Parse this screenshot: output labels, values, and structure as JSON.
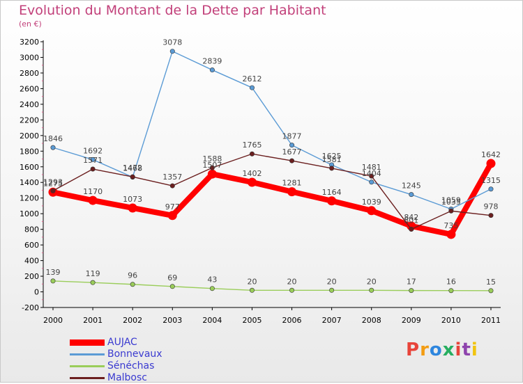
{
  "title": "Evolution du Montant de la Dette par Habitant",
  "subtitle": "(en €)",
  "logo_text": "Proxiti",
  "chart_data": {
    "type": "line",
    "x": [
      2000,
      2001,
      2002,
      2003,
      2004,
      2005,
      2006,
      2007,
      2008,
      2009,
      2010,
      2011
    ],
    "ylim": [
      -200,
      3200
    ],
    "yticks": [
      -200,
      0,
      200,
      400,
      600,
      800,
      1000,
      1200,
      1400,
      1600,
      1800,
      2000,
      2200,
      2400,
      2600,
      2800,
      3000,
      3200
    ],
    "grid": false,
    "legend_position": "bottom-left",
    "series": [
      {
        "name": "AUJAC",
        "color": "#ff0000",
        "values": [
          1275,
          1170,
          1073,
          977,
          1507,
          1402,
          1281,
          1164,
          1039,
          842,
          735,
          1642
        ]
      },
      {
        "name": "Bonnevaux",
        "color": "#5b9bd5",
        "values": [
          1846,
          1692,
          1468,
          3078,
          2839,
          2612,
          1877,
          1625,
          1404,
          1245,
          1059,
          1315
        ]
      },
      {
        "name": "Sénéchas",
        "color": "#9acd5a",
        "values": [
          139,
          119,
          96,
          69,
          43,
          20,
          20,
          20,
          20,
          17,
          16,
          15
        ]
      },
      {
        "name": "Malbosc",
        "color": "#6b1f1f",
        "values": [
          1293,
          1571,
          1472,
          1357,
          1588,
          1765,
          1677,
          1581,
          1481,
          801,
          1035,
          978
        ]
      }
    ]
  }
}
